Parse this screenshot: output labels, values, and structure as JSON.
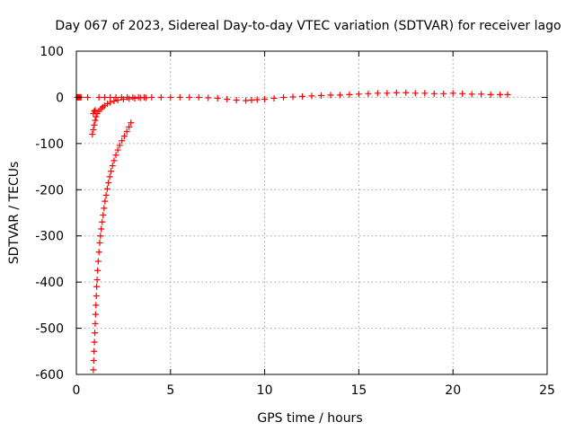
{
  "chart_data": {
    "type": "scatter",
    "title": "Day 067 of 2023, Sidereal Day-to-day VTEC variation (SDTVAR) for receiver lago",
    "xlabel": "GPS time / hours",
    "ylabel": "SDTVAR / TECUs",
    "xlim": [
      0,
      25
    ],
    "ylim": [
      -600,
      100
    ],
    "xticks": [
      "0",
      "5",
      "10",
      "15",
      "20",
      "25"
    ],
    "yticks": [
      "100",
      "0",
      "-100",
      "-200",
      "-300",
      "-400",
      "-500",
      "-600"
    ],
    "grid": true,
    "marker": "plus",
    "color": "#ff0000",
    "series": [
      {
        "points": [
          [
            0.05,
            0
          ],
          [
            0.1,
            0
          ],
          [
            0.15,
            0
          ],
          [
            0.2,
            0
          ],
          [
            0.25,
            0
          ],
          [
            0.6,
            0
          ],
          [
            0.9,
            -590
          ],
          [
            0.92,
            -570
          ],
          [
            0.94,
            -550
          ],
          [
            0.96,
            -530
          ],
          [
            0.98,
            -510
          ],
          [
            1.0,
            -490
          ],
          [
            1.02,
            -470
          ],
          [
            1.04,
            -450
          ],
          [
            1.06,
            -430
          ],
          [
            1.08,
            -410
          ],
          [
            1.1,
            -395
          ],
          [
            1.13,
            -375
          ],
          [
            1.16,
            -355
          ],
          [
            1.2,
            -335
          ],
          [
            1.24,
            -315
          ],
          [
            1.28,
            -300
          ],
          [
            1.32,
            -285
          ],
          [
            1.37,
            -270
          ],
          [
            1.42,
            -255
          ],
          [
            1.47,
            -240
          ],
          [
            1.52,
            -225
          ],
          [
            1.58,
            -212
          ],
          [
            1.64,
            -198
          ],
          [
            1.7,
            -185
          ],
          [
            1.77,
            -172
          ],
          [
            1.84,
            -160
          ],
          [
            1.92,
            -148
          ],
          [
            2.0,
            -137
          ],
          [
            2.1,
            -125
          ],
          [
            2.2,
            -114
          ],
          [
            2.3,
            -104
          ],
          [
            2.42,
            -94
          ],
          [
            2.55,
            -84
          ],
          [
            2.68,
            -74
          ],
          [
            2.8,
            -64
          ],
          [
            2.9,
            -55
          ],
          [
            0.85,
            -80
          ],
          [
            0.9,
            -70
          ],
          [
            0.95,
            -60
          ],
          [
            1.0,
            -50
          ],
          [
            1.05,
            -42
          ],
          [
            1.1,
            -35
          ],
          [
            1.2,
            -30
          ],
          [
            1.3,
            -25
          ],
          [
            1.4,
            -21
          ],
          [
            1.5,
            -18
          ],
          [
            1.65,
            -14
          ],
          [
            1.8,
            -11
          ],
          [
            2.0,
            -8
          ],
          [
            2.2,
            -6
          ],
          [
            2.5,
            -4
          ],
          [
            2.8,
            -3
          ],
          [
            3.1,
            -2
          ],
          [
            3.4,
            -1
          ],
          [
            3.7,
            -1
          ],
          [
            0.9,
            -35
          ],
          [
            0.95,
            -30
          ],
          [
            1.0,
            -28
          ],
          [
            1.2,
            0
          ],
          [
            1.5,
            0
          ],
          [
            1.8,
            0
          ],
          [
            2.1,
            0
          ],
          [
            2.4,
            0
          ],
          [
            2.7,
            0
          ],
          [
            3.0,
            0
          ],
          [
            3.3,
            0
          ],
          [
            3.6,
            0
          ],
          [
            4.0,
            0
          ],
          [
            4.5,
            0
          ],
          [
            5.0,
            0
          ],
          [
            5.5,
            0
          ],
          [
            6.0,
            0
          ],
          [
            6.5,
            0
          ],
          [
            7.0,
            -1
          ],
          [
            7.5,
            -2
          ],
          [
            8.0,
            -4
          ],
          [
            8.5,
            -6
          ],
          [
            9.0,
            -7
          ],
          [
            9.3,
            -6
          ],
          [
            9.6,
            -5
          ],
          [
            10.0,
            -4
          ],
          [
            10.5,
            -2
          ],
          [
            11.0,
            0
          ],
          [
            11.5,
            1
          ],
          [
            12.0,
            2
          ],
          [
            12.5,
            3
          ],
          [
            13.0,
            4
          ],
          [
            13.5,
            5
          ],
          [
            14.0,
            5
          ],
          [
            14.5,
            6
          ],
          [
            15.0,
            7
          ],
          [
            15.5,
            8
          ],
          [
            16.0,
            9
          ],
          [
            16.5,
            9
          ],
          [
            17.0,
            10
          ],
          [
            17.5,
            10
          ],
          [
            18.0,
            9
          ],
          [
            18.5,
            9
          ],
          [
            19.0,
            8
          ],
          [
            19.5,
            8
          ],
          [
            20.0,
            9
          ],
          [
            20.5,
            8
          ],
          [
            21.0,
            7
          ],
          [
            21.5,
            7
          ],
          [
            22.0,
            6
          ],
          [
            22.5,
            6
          ],
          [
            22.9,
            6
          ]
        ]
      }
    ]
  }
}
